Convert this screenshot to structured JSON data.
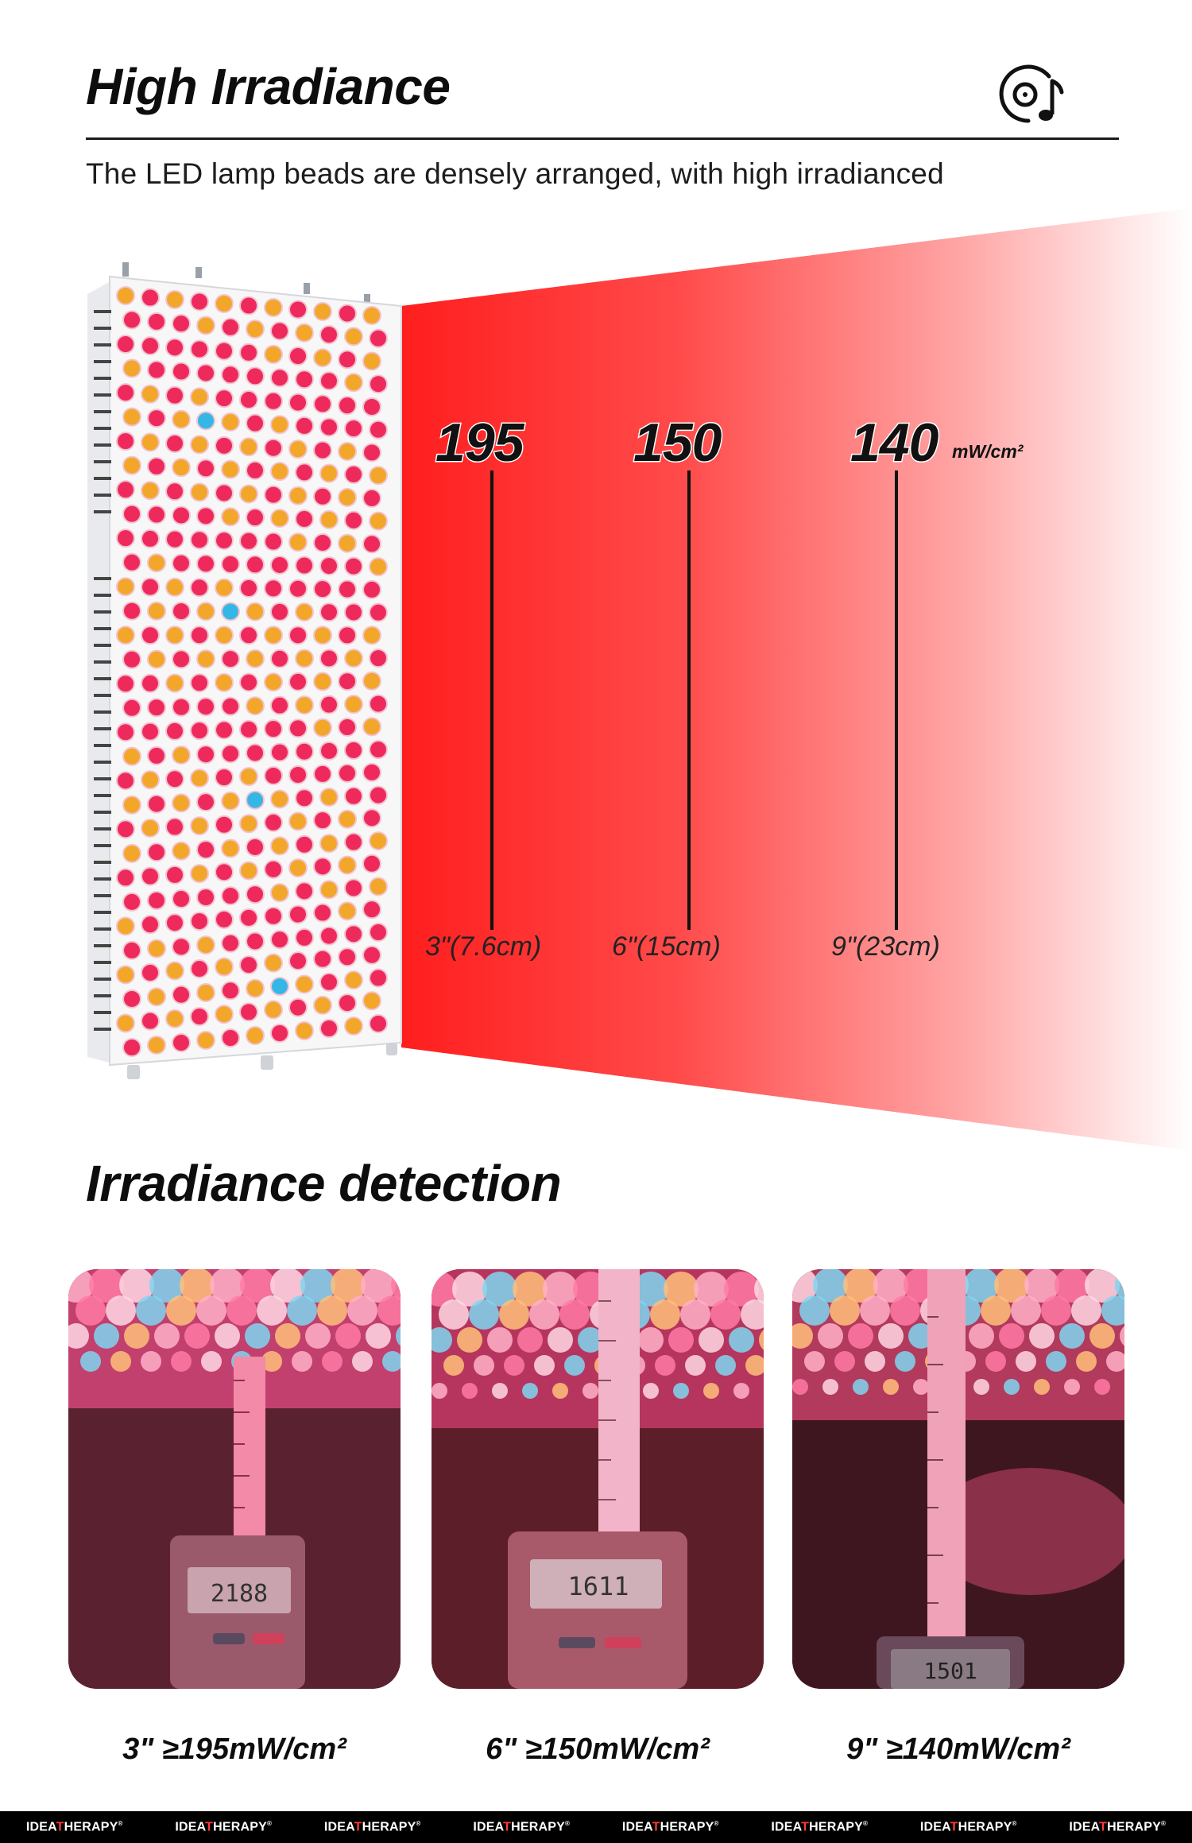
{
  "header": {
    "title": "High Irradiance",
    "subtitle": "The LED lamp beads are densely arranged, with high irradianced"
  },
  "icons": {
    "header_icon": "music-disc-icon"
  },
  "irradiance": {
    "unit": "mW/cm²",
    "readings": [
      {
        "value": "195",
        "distance": "3\"(7.6cm)"
      },
      {
        "value": "150",
        "distance": "6\"(15cm)"
      },
      {
        "value": "140",
        "distance": "9\"(23cm)"
      }
    ]
  },
  "detection": {
    "title": "Irradiance detection",
    "photos": [
      {
        "caption": "3\" ≥195mW/cm²",
        "meter_reading": "2188"
      },
      {
        "caption": "6\" ≥150mW/cm²",
        "meter_reading": "1611"
      },
      {
        "caption": "9\" ≥140mW/cm²",
        "meter_reading": "1501"
      }
    ]
  },
  "footer": {
    "brand_prefix": "IDEA",
    "brand_accent": "T",
    "brand_suffix": "HERAPY",
    "brand_mark": "®"
  },
  "colors": {
    "beam_red": "#ff2222",
    "led_red": "#ee2a5c",
    "led_amber": "#f2a72a",
    "led_blue": "#35b7e6",
    "footer_bg": "#000000"
  }
}
